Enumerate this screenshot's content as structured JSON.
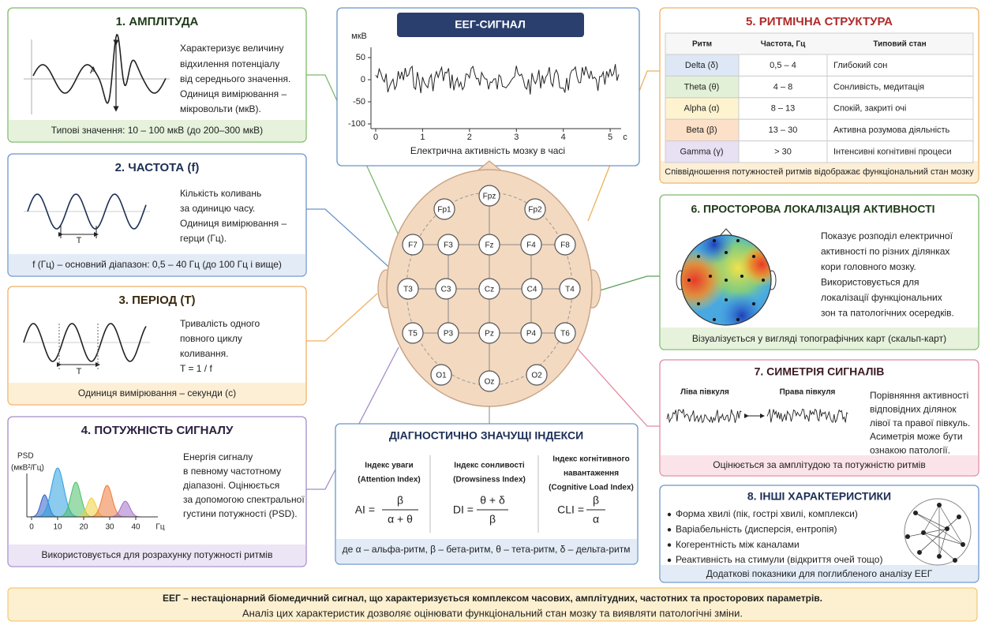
{
  "panels": [
    {
      "title": "1. АМПЛІТУДА",
      "text": [
        "Характеризує величину",
        "відхилення потенціалу",
        "від середнього значення.",
        "Одиниця вимірювання –",
        "мікровольти (мкВ)."
      ],
      "footer": "Типові значення: 10 – 100 мкВ (до 200–300 мкВ)",
      "label": "A"
    },
    {
      "title": "2. ЧАСТОТА (f)",
      "text": [
        "Кількість коливань",
        "за одиницю часу.",
        "Одиниця вимірювання –",
        "герци (Гц)."
      ],
      "footer": "f (Гц) – основний діапазон: 0,5 – 40 Гц (до 100 Гц і вище)",
      "label": "T"
    },
    {
      "title": "3. ПЕРІОД (T)",
      "text": [
        "Тривалість одного",
        "повного циклу",
        "коливання.",
        "T = 1 / f"
      ],
      "footer": "Одиниця вимірювання – секунди (с)",
      "label": "T"
    },
    {
      "title": "4. ПОТУЖНІСТЬ СИГНАЛУ",
      "text": [
        "Енергія сигналу",
        "в певному частотному",
        "діапазоні. Оцінюється",
        "за допомогою спектральної",
        "густини потужності (PSD)."
      ],
      "footer": "Використовується для розрахунку потужності ритмів",
      "psd": {
        "ylabel": [
          "PSD",
          "(мкВ²/Гц)"
        ],
        "xticks": [
          0,
          10,
          20,
          30,
          40
        ],
        "xunit": "Гц"
      }
    }
  ],
  "eeg": {
    "title": "ЕЕГ-СИГНАЛ",
    "ylabel": "мкВ",
    "ylim": [
      -110,
      65
    ],
    "yticks": [
      50,
      0,
      -50,
      -100
    ],
    "xlim": [
      0,
      5.2
    ],
    "xticks": [
      0,
      1,
      2,
      3,
      4,
      5
    ],
    "xunit": "с",
    "caption": "Електрична активність мозку в часі"
  },
  "electrodes": [
    "Fpz",
    "Fp1",
    "Fp2",
    "F7",
    "F3",
    "Fz",
    "F4",
    "F8",
    "T3",
    "C3",
    "Cz",
    "C4",
    "T4",
    "T5",
    "P3",
    "Pz",
    "P4",
    "T6",
    "O1",
    "Oz",
    "O2"
  ],
  "indices": {
    "title": "ДІАГНОСТИЧНО ЗНАЧУЩІ ІНДЕКСИ",
    "items": [
      {
        "name": [
          "Індекс уваги",
          "(Attention Index)"
        ],
        "lhs": "AI =",
        "num": "β",
        "den": "α + θ"
      },
      {
        "name": [
          "Індекс сонливості",
          "(Drowsiness Index)"
        ],
        "lhs": "DI =",
        "num": "θ + δ",
        "den": "β"
      },
      {
        "name": [
          "Індекс когнітивного",
          "навантаження",
          "(Cognitive Load Index)"
        ],
        "lhs": "CLI =",
        "num": "β",
        "den": "α"
      }
    ],
    "footer": "де α – альфа-ритм, β – бета-ритм, θ – тета-ритм, δ – дельта-ритм"
  },
  "rhythms": {
    "title": "5. РИТМІЧНА СТРУКТУРА",
    "header": [
      "Ритм",
      "Частота, Гц",
      "Типовий стан"
    ],
    "rows": [
      [
        "Delta (δ)",
        "0,5 – 4",
        "Глибокий сон"
      ],
      [
        "Theta (θ)",
        "4 – 8",
        "Сонливість, медитація"
      ],
      [
        "Alpha (α)",
        "8 – 13",
        "Спокій, закриті очі"
      ],
      [
        "Beta (β)",
        "13 – 30",
        "Активна розумова діяльність"
      ],
      [
        "Gamma (γ)",
        "> 30",
        "Інтенсивні когнітивні процеси"
      ]
    ],
    "footer": "Співвідношення потужностей ритмів відображає функціональний стан мозку"
  },
  "localization": {
    "title": "6. ПРОСТОРОВА ЛОКАЛІЗАЦІЯ АКТИВНОСТІ",
    "text": [
      "Показує розподіл електричної",
      "активності по різних ділянках",
      "кори головного мозку.",
      "Використовується для",
      "локалізації функціональних",
      "зон та патологічних осередків."
    ],
    "footer": "Візуалізується у вигляді топографічних карт (скальп-карт)"
  },
  "symmetry": {
    "title": "7. СИМЕТРІЯ СИГНАЛІВ",
    "left": "Ліва півкуля",
    "right": "Права півкуля",
    "text": [
      "Порівняння активності",
      "відповідних ділянок",
      "лівої та правої півкуль.",
      "Асиметрія може бути",
      "ознакою патології."
    ],
    "footer": "Оцінюється за амплітудою та потужністю ритмів"
  },
  "other": {
    "title": "8. ІНШІ ХАРАКТЕРИСТИКИ",
    "items": [
      "Форма хвилі (пік, гострі хвилі, комплекси)",
      "Варіабельність (дисперсія, ентропія)",
      "Когерентність між каналами",
      "Реактивність на стимули (відкриття очей тощо)"
    ],
    "footer": "Додаткові показники для поглибленого аналізу ЕЕГ"
  },
  "summary": [
    "ЕЕГ – нестаціонарний біомедичний сигнал, що характеризується комплексом часових, амплітудних, частотних та просторових параметрів.",
    "Аналіз цих характеристик дозволяє оцінювати функціональний стан мозку та виявляти патологічні зміни."
  ]
}
